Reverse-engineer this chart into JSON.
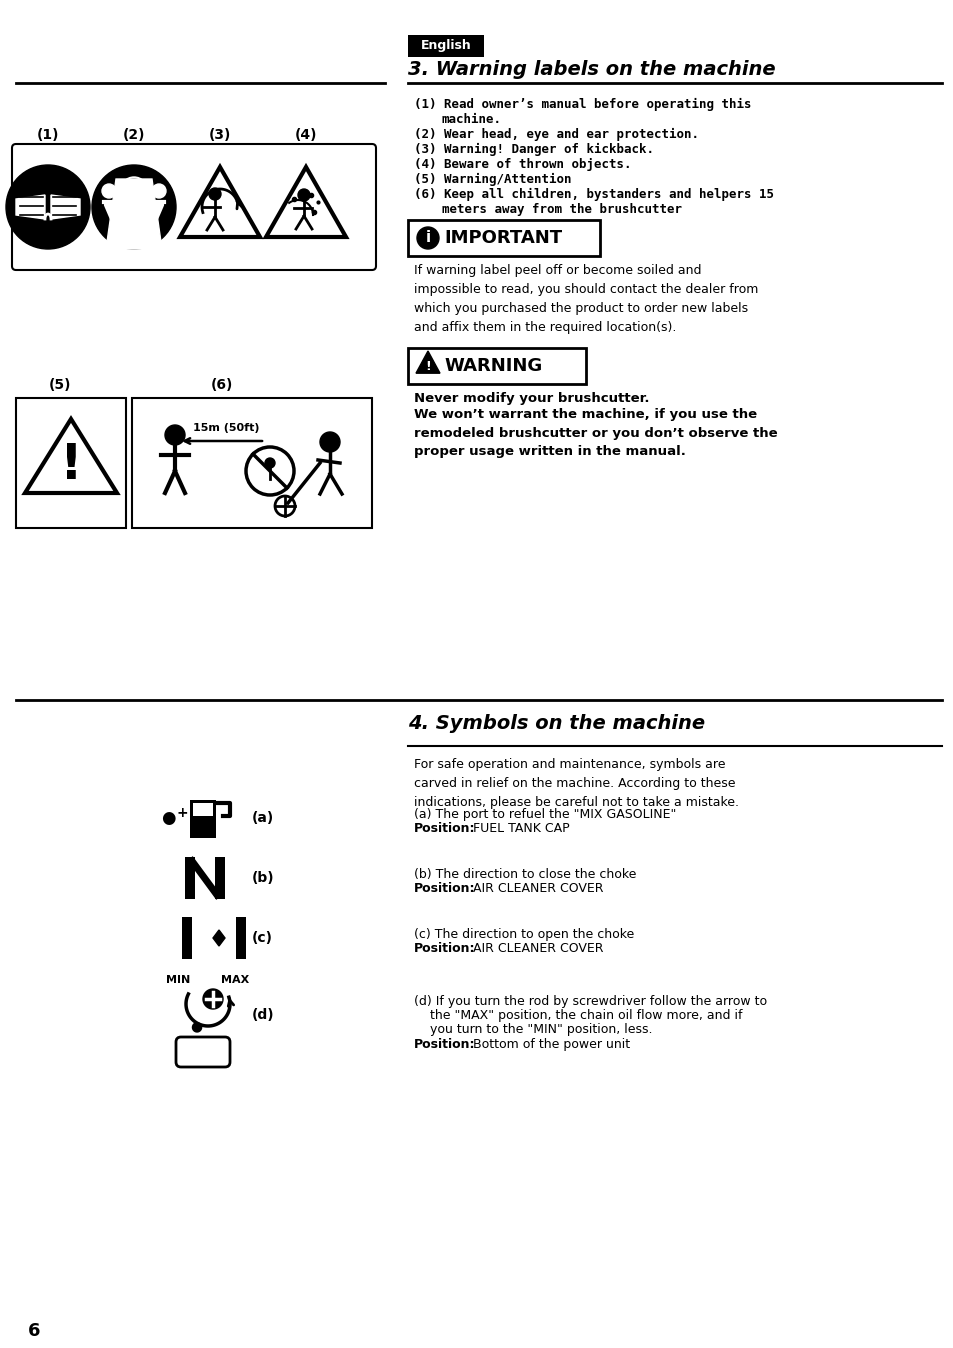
{
  "bg_color": "#ffffff",
  "page_number": "6",
  "english_label": "English",
  "section3_title": "3. Warning labels on the machine",
  "section4_title": "4. Symbols on the machine",
  "item1": "(1) Read owner’s manual before operating this\n     machine.",
  "item2": "(2) Wear head, eye and ear protection.",
  "item3": "(3) Warning! Danger of kickback.",
  "item4": "(4) Beware of thrown objects.",
  "item5": "(5) Warning/Attention",
  "item6": "(6) Keep all children, bystanders and helpers 15\n     meters away from the brushcutter",
  "important_body": "If warning label peel off or become soiled and\nimpossible to read, you should contact the dealer from\nwhich you purchased the product to order new labels\nand affix them in the required location(s).",
  "warning_body1": "Never modify your brushcutter.",
  "warning_body2": "We won’t warrant the machine, if you use the\nremodeled brushcutter or you don’t observe the\nproper usage written in the manual.",
  "sec4_intro": "For safe operation and maintenance, symbols are\ncarved in relief on the machine. According to these\nindications, please be careful not to take a mistake.",
  "sym_a_line1": "(a) The port to refuel the \"MIX GASOLINE\"",
  "sym_a_pos_bold": "Position:",
  "sym_a_pos_rest": " FUEL TANK CAP",
  "sym_b_line1": "(b) The direction to close the choke",
  "sym_b_pos_bold": "Position:",
  "sym_b_pos_rest": " AIR CLEANER COVER",
  "sym_c_line1": "(c) The direction to open the choke",
  "sym_c_pos_bold": "Position:",
  "sym_c_pos_rest": " AIR CLEANER COVER",
  "sym_d_line1": "(d) If you turn the rod by screwdriver follow the arrow to",
  "sym_d_line2": "    the \"MAX\" position, the chain oil flow more, and if",
  "sym_d_line3": "    you turn to the \"MIN\" position, less.",
  "sym_d_pos_bold": "Position:",
  "sym_d_pos_rest": " Bottom of the power unit",
  "label1": "(1)",
  "label2": "(2)",
  "label3": "(3)",
  "label4": "(4)",
  "label5": "(5)",
  "label6": "(6)",
  "dist_label": "15m (50ft)"
}
